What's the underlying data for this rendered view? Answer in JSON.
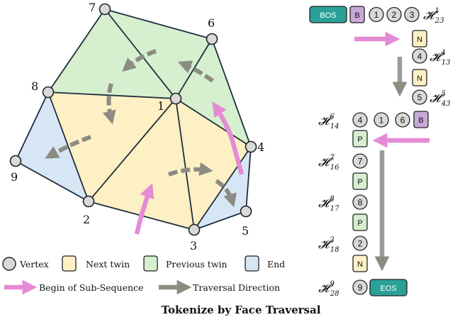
{
  "title": "Tokenize by Face Traversal",
  "vertices": [
    {
      "id": "1",
      "label": "1"
    },
    {
      "id": "2",
      "label": "2"
    },
    {
      "id": "3",
      "label": "3"
    },
    {
      "id": "4",
      "label": "4"
    },
    {
      "id": "5",
      "label": "5"
    },
    {
      "id": "6",
      "label": "6"
    },
    {
      "id": "7",
      "label": "7"
    },
    {
      "id": "8",
      "label": "8"
    },
    {
      "id": "9",
      "label": "9"
    }
  ],
  "faces": [
    {
      "type": "previous-twin",
      "verts": [
        "7",
        "6",
        "1"
      ]
    },
    {
      "type": "previous-twin",
      "verts": [
        "7",
        "1",
        "8"
      ]
    },
    {
      "type": "previous-twin",
      "verts": [
        "6",
        "4",
        "1"
      ]
    },
    {
      "type": "next-twin",
      "verts": [
        "8",
        "1",
        "2"
      ]
    },
    {
      "type": "next-twin",
      "verts": [
        "1",
        "3",
        "2"
      ]
    },
    {
      "type": "next-twin",
      "verts": [
        "1",
        "4",
        "3"
      ]
    },
    {
      "type": "end",
      "verts": [
        "8",
        "2",
        "9"
      ]
    },
    {
      "type": "end",
      "verts": [
        "4",
        "5",
        "3"
      ]
    }
  ],
  "colors": {
    "next_twin": "#fdf0c4",
    "previous_twin": "#d5efcf",
    "end": "#d6e6f5",
    "begin_arrow": "#e58bd6",
    "traversal_arrow": "#8c8c82",
    "vertex_fill": "#d9d9d9",
    "token_bos": "#2aa198",
    "token_b": "#c9a8d6",
    "token_n": "#fdf0c4",
    "token_p": "#d5efcf"
  },
  "sequence": {
    "row1": {
      "tokens": [
        "BOS",
        "B"
      ],
      "vertices": [
        "1",
        "2",
        "3"
      ],
      "h": {
        "sym": "𝓗",
        "sup": "1",
        "sub": "23"
      }
    },
    "row2": {
      "token": "N"
    },
    "row3": {
      "vertex": "4",
      "h": {
        "sym": "𝓗",
        "sup": "4",
        "sub": "13"
      }
    },
    "row4": {
      "token": "N"
    },
    "row5": {
      "vertex": "5",
      "h": {
        "sym": "𝓗",
        "sup": "5",
        "sub": "43"
      }
    },
    "row6": {
      "h": {
        "sym": "𝓗",
        "sup": "6",
        "sub": "14"
      },
      "vertices": [
        "4",
        "1",
        "6"
      ],
      "token": "B"
    },
    "row7": {
      "token": "P"
    },
    "row8": {
      "h": {
        "sym": "𝓗",
        "sup": "7",
        "sub": "16"
      },
      "vertex": "7"
    },
    "row9": {
      "token": "P"
    },
    "row10": {
      "h": {
        "sym": "𝓗",
        "sup": "8",
        "sub": "17"
      },
      "vertex": "8"
    },
    "row11": {
      "token": "P"
    },
    "row12": {
      "h": {
        "sym": "𝓗",
        "sup": "2",
        "sub": "18"
      },
      "vertex": "2"
    },
    "row13": {
      "token": "N"
    },
    "row14": {
      "h": {
        "sym": "𝓗",
        "sup": "9",
        "sub": "28"
      },
      "vertex": "9",
      "token": "EOS"
    }
  },
  "legend": {
    "vertex": "Vertex",
    "next_twin": "Next twin",
    "previous_twin": "Previous twin",
    "end": "End",
    "begin": "Begin of Sub-Sequence",
    "traversal": "Traversal Direction"
  }
}
